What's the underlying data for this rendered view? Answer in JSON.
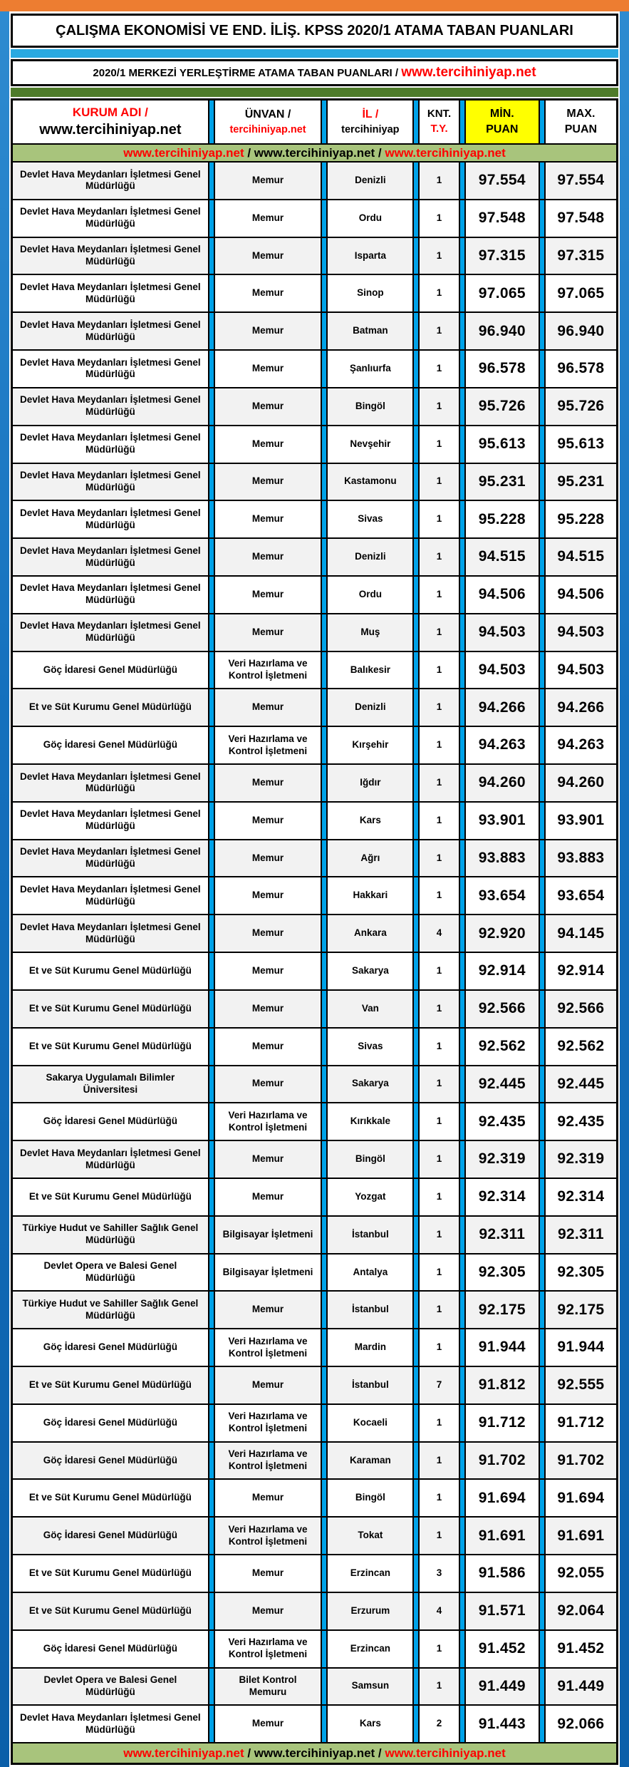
{
  "page": {
    "title": "ÇALIŞMA EKONOMİSİ VE END. İLİŞ. KPSS 2020/1 ATAMA TABAN PUANLARI",
    "subtitle_prefix": "2020/1 MERKEZİ YERLEŞTİRME ATAMA TABAN PUANLARI / ",
    "subtitle_link": "www.tercihiniyap.net"
  },
  "colors": {
    "top_bar_orange": "#ED7D31",
    "accent_blue_bar": "#29A9E1",
    "column_separator_blue": "#00A2E8",
    "accent_green_bar": "#4E7B2A",
    "banner_green": "#A8C47C",
    "min_header_yellow": "#FFFF00",
    "link_red": "#FF0000",
    "side_strip_blue": "#1470BD",
    "row_alt_gray": "#F2F2F2"
  },
  "header": {
    "kurum_top": "KURUM ADI /",
    "kurum_bottom": "www.tercihiniyap.net",
    "unvan_top": "ÜNVAN /",
    "unvan_bottom": "tercihiniyap.net",
    "il_top": "İL /",
    "il_bottom": "tercihiniyap",
    "knt_top": "KNT.",
    "knt_bottom": "T.Y.",
    "min_top": "MİN.",
    "min_bottom": "PUAN",
    "max_top": "MAX.",
    "max_bottom": "PUAN"
  },
  "banner": {
    "items": [
      {
        "text": "www.tercihiniyap.net",
        "red": true
      },
      {
        "text": " / ",
        "red": false
      },
      {
        "text": "www.tercihiniyap.net",
        "red": false
      },
      {
        "text": " / ",
        "red": false
      },
      {
        "text": "www.tercihiniyap.net",
        "red": true
      }
    ]
  },
  "rows": [
    {
      "kurum": "Devlet Hava Meydanları İşletmesi Genel Müdürlüğü",
      "unvan": "Memur",
      "il": "Denizli",
      "knt": "1",
      "min": "97.554",
      "max": "97.554"
    },
    {
      "kurum": "Devlet Hava Meydanları İşletmesi Genel Müdürlüğü",
      "unvan": "Memur",
      "il": "Ordu",
      "knt": "1",
      "min": "97.548",
      "max": "97.548"
    },
    {
      "kurum": "Devlet Hava Meydanları İşletmesi Genel Müdürlüğü",
      "unvan": "Memur",
      "il": "Isparta",
      "knt": "1",
      "min": "97.315",
      "max": "97.315"
    },
    {
      "kurum": "Devlet Hava Meydanları İşletmesi Genel Müdürlüğü",
      "unvan": "Memur",
      "il": "Sinop",
      "knt": "1",
      "min": "97.065",
      "max": "97.065"
    },
    {
      "kurum": "Devlet Hava Meydanları İşletmesi Genel Müdürlüğü",
      "unvan": "Memur",
      "il": "Batman",
      "knt": "1",
      "min": "96.940",
      "max": "96.940"
    },
    {
      "kurum": "Devlet Hava Meydanları İşletmesi Genel Müdürlüğü",
      "unvan": "Memur",
      "il": "Şanlıurfa",
      "knt": "1",
      "min": "96.578",
      "max": "96.578"
    },
    {
      "kurum": "Devlet Hava Meydanları İşletmesi Genel Müdürlüğü",
      "unvan": "Memur",
      "il": "Bingöl",
      "knt": "1",
      "min": "95.726",
      "max": "95.726"
    },
    {
      "kurum": "Devlet Hava Meydanları İşletmesi Genel Müdürlüğü",
      "unvan": "Memur",
      "il": "Nevşehir",
      "knt": "1",
      "min": "95.613",
      "max": "95.613"
    },
    {
      "kurum": "Devlet Hava Meydanları İşletmesi Genel Müdürlüğü",
      "unvan": "Memur",
      "il": "Kastamonu",
      "knt": "1",
      "min": "95.231",
      "max": "95.231"
    },
    {
      "kurum": "Devlet Hava Meydanları İşletmesi Genel Müdürlüğü",
      "unvan": "Memur",
      "il": "Sivas",
      "knt": "1",
      "min": "95.228",
      "max": "95.228"
    },
    {
      "kurum": "Devlet Hava Meydanları İşletmesi Genel Müdürlüğü",
      "unvan": "Memur",
      "il": "Denizli",
      "knt": "1",
      "min": "94.515",
      "max": "94.515"
    },
    {
      "kurum": "Devlet Hava Meydanları İşletmesi Genel Müdürlüğü",
      "unvan": "Memur",
      "il": "Ordu",
      "knt": "1",
      "min": "94.506",
      "max": "94.506"
    },
    {
      "kurum": "Devlet Hava Meydanları İşletmesi Genel Müdürlüğü",
      "unvan": "Memur",
      "il": "Muş",
      "knt": "1",
      "min": "94.503",
      "max": "94.503"
    },
    {
      "kurum": "Göç İdaresi Genel Müdürlüğü",
      "unvan": "Veri Hazırlama ve Kontrol İşletmeni",
      "il": "Balıkesir",
      "knt": "1",
      "min": "94.503",
      "max": "94.503"
    },
    {
      "kurum": "Et ve Süt Kurumu Genel Müdürlüğü",
      "unvan": "Memur",
      "il": "Denizli",
      "knt": "1",
      "min": "94.266",
      "max": "94.266"
    },
    {
      "kurum": "Göç İdaresi Genel Müdürlüğü",
      "unvan": "Veri Hazırlama ve Kontrol İşletmeni",
      "il": "Kırşehir",
      "knt": "1",
      "min": "94.263",
      "max": "94.263"
    },
    {
      "kurum": "Devlet Hava Meydanları İşletmesi Genel Müdürlüğü",
      "unvan": "Memur",
      "il": "Iğdır",
      "knt": "1",
      "min": "94.260",
      "max": "94.260"
    },
    {
      "kurum": "Devlet Hava Meydanları İşletmesi Genel Müdürlüğü",
      "unvan": "Memur",
      "il": "Kars",
      "knt": "1",
      "min": "93.901",
      "max": "93.901"
    },
    {
      "kurum": "Devlet Hava Meydanları İşletmesi Genel Müdürlüğü",
      "unvan": "Memur",
      "il": "Ağrı",
      "knt": "1",
      "min": "93.883",
      "max": "93.883"
    },
    {
      "kurum": "Devlet Hava Meydanları İşletmesi Genel Müdürlüğü",
      "unvan": "Memur",
      "il": "Hakkari",
      "knt": "1",
      "min": "93.654",
      "max": "93.654"
    },
    {
      "kurum": "Devlet Hava Meydanları İşletmesi Genel Müdürlüğü",
      "unvan": "Memur",
      "il": "Ankara",
      "knt": "4",
      "min": "92.920",
      "max": "94.145"
    },
    {
      "kurum": "Et ve Süt Kurumu Genel Müdürlüğü",
      "unvan": "Memur",
      "il": "Sakarya",
      "knt": "1",
      "min": "92.914",
      "max": "92.914"
    },
    {
      "kurum": "Et ve Süt Kurumu Genel Müdürlüğü",
      "unvan": "Memur",
      "il": "Van",
      "knt": "1",
      "min": "92.566",
      "max": "92.566"
    },
    {
      "kurum": "Et ve Süt Kurumu Genel Müdürlüğü",
      "unvan": "Memur",
      "il": "Sivas",
      "knt": "1",
      "min": "92.562",
      "max": "92.562"
    },
    {
      "kurum": "Sakarya Uygulamalı Bilimler Üniversitesi",
      "unvan": "Memur",
      "il": "Sakarya",
      "knt": "1",
      "min": "92.445",
      "max": "92.445"
    },
    {
      "kurum": "Göç İdaresi Genel Müdürlüğü",
      "unvan": "Veri Hazırlama ve Kontrol İşletmeni",
      "il": "Kırıkkale",
      "knt": "1",
      "min": "92.435",
      "max": "92.435"
    },
    {
      "kurum": "Devlet Hava Meydanları İşletmesi Genel Müdürlüğü",
      "unvan": "Memur",
      "il": "Bingöl",
      "knt": "1",
      "min": "92.319",
      "max": "92.319"
    },
    {
      "kurum": "Et ve Süt Kurumu Genel Müdürlüğü",
      "unvan": "Memur",
      "il": "Yozgat",
      "knt": "1",
      "min": "92.314",
      "max": "92.314"
    },
    {
      "kurum": "Türkiye Hudut ve Sahiller Sağlık Genel Müdürlüğü",
      "unvan": "Bilgisayar İşletmeni",
      "il": "İstanbul",
      "knt": "1",
      "min": "92.311",
      "max": "92.311"
    },
    {
      "kurum": "Devlet Opera ve Balesi Genel Müdürlüğü",
      "unvan": "Bilgisayar İşletmeni",
      "il": "Antalya",
      "knt": "1",
      "min": "92.305",
      "max": "92.305"
    },
    {
      "kurum": "Türkiye Hudut ve Sahiller Sağlık Genel Müdürlüğü",
      "unvan": "Memur",
      "il": "İstanbul",
      "knt": "1",
      "min": "92.175",
      "max": "92.175"
    },
    {
      "kurum": "Göç İdaresi Genel Müdürlüğü",
      "unvan": "Veri Hazırlama ve Kontrol İşletmeni",
      "il": "Mardin",
      "knt": "1",
      "min": "91.944",
      "max": "91.944"
    },
    {
      "kurum": "Et ve Süt Kurumu Genel Müdürlüğü",
      "unvan": "Memur",
      "il": "İstanbul",
      "knt": "7",
      "min": "91.812",
      "max": "92.555"
    },
    {
      "kurum": "Göç İdaresi Genel Müdürlüğü",
      "unvan": "Veri Hazırlama ve Kontrol İşletmeni",
      "il": "Kocaeli",
      "knt": "1",
      "min": "91.712",
      "max": "91.712"
    },
    {
      "kurum": "Göç İdaresi Genel Müdürlüğü",
      "unvan": "Veri Hazırlama ve Kontrol İşletmeni",
      "il": "Karaman",
      "knt": "1",
      "min": "91.702",
      "max": "91.702"
    },
    {
      "kurum": "Et ve Süt Kurumu Genel Müdürlüğü",
      "unvan": "Memur",
      "il": "Bingöl",
      "knt": "1",
      "min": "91.694",
      "max": "91.694"
    },
    {
      "kurum": "Göç İdaresi Genel Müdürlüğü",
      "unvan": "Veri Hazırlama ve Kontrol İşletmeni",
      "il": "Tokat",
      "knt": "1",
      "min": "91.691",
      "max": "91.691"
    },
    {
      "kurum": "Et ve Süt Kurumu Genel Müdürlüğü",
      "unvan": "Memur",
      "il": "Erzincan",
      "knt": "3",
      "min": "91.586",
      "max": "92.055"
    },
    {
      "kurum": "Et ve Süt Kurumu Genel Müdürlüğü",
      "unvan": "Memur",
      "il": "Erzurum",
      "knt": "4",
      "min": "91.571",
      "max": "92.064"
    },
    {
      "kurum": "Göç İdaresi Genel Müdürlüğü",
      "unvan": "Veri Hazırlama ve Kontrol İşletmeni",
      "il": "Erzincan",
      "knt": "1",
      "min": "91.452",
      "max": "91.452"
    },
    {
      "kurum": "Devlet Opera ve Balesi Genel Müdürlüğü",
      "unvan": "Bilet Kontrol Memuru",
      "il": "Samsun",
      "knt": "1",
      "min": "91.449",
      "max": "91.449"
    },
    {
      "kurum": "Devlet Hava Meydanları İşletmesi Genel Müdürlüğü",
      "unvan": "Memur",
      "il": "Kars",
      "knt": "2",
      "min": "91.443",
      "max": "92.066"
    }
  ]
}
